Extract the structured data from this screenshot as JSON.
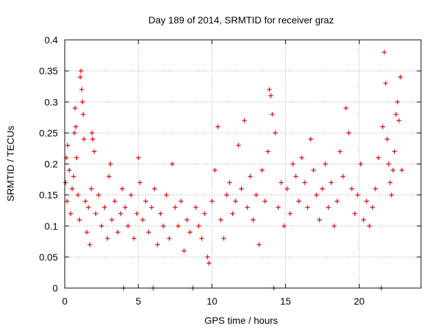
{
  "chart_data": {
    "type": "scatter",
    "title": "Day 189 of 2014, SRMTID for receiver graz",
    "xlabel": "GPS time / hours",
    "ylabel": "SRMTID / TECUs",
    "xlim": [
      0,
      24.2
    ],
    "ylim": [
      0,
      0.4
    ],
    "x_ticks": [
      "0",
      "5",
      "10",
      "15",
      "20"
    ],
    "x_tick_values": [
      0,
      5,
      10,
      15,
      20
    ],
    "y_ticks": [
      "0",
      "0.05",
      "0.1",
      "0.15",
      "0.2",
      "0.25",
      "0.3",
      "0.35",
      "0.4"
    ],
    "y_tick_values": [
      0,
      0.05,
      0.1,
      0.15,
      0.2,
      0.25,
      0.3,
      0.35,
      0.4
    ],
    "grid": true,
    "marker": "+",
    "color": "#e00000",
    "series": [
      {
        "name": "SRMTID",
        "points": [
          [
            0.05,
            0.17
          ],
          [
            0.1,
            0.21
          ],
          [
            0.15,
            0.14
          ],
          [
            0.2,
            0.23
          ],
          [
            0.3,
            0.19
          ],
          [
            0.4,
            0.12
          ],
          [
            0.5,
            0.16
          ],
          [
            0.6,
            0.18
          ],
          [
            0.65,
            0.25
          ],
          [
            0.7,
            0.29
          ],
          [
            0.75,
            0.26
          ],
          [
            0.8,
            0.21
          ],
          [
            0.9,
            0.15
          ],
          [
            1.0,
            0.11
          ],
          [
            1.05,
            0.34
          ],
          [
            1.1,
            0.35
          ],
          [
            1.15,
            0.32
          ],
          [
            1.2,
            0.3
          ],
          [
            1.25,
            0.28
          ],
          [
            1.3,
            0.24
          ],
          [
            1.4,
            0.14
          ],
          [
            1.5,
            0.09
          ],
          [
            1.6,
            0.13
          ],
          [
            1.7,
            0.07
          ],
          [
            1.8,
            0.16
          ],
          [
            1.85,
            0.25
          ],
          [
            1.9,
            0.24
          ],
          [
            2.0,
            0.22
          ],
          [
            2.1,
            0.12
          ],
          [
            2.3,
            0.15
          ],
          [
            2.5,
            0.1
          ],
          [
            2.7,
            0.13
          ],
          [
            2.9,
            0.08
          ],
          [
            3.0,
            0.18
          ],
          [
            3.1,
            0.2
          ],
          [
            3.2,
            0.11
          ],
          [
            3.4,
            0.14
          ],
          [
            3.6,
            0.09
          ],
          [
            3.8,
            0.12
          ],
          [
            3.9,
            0.16
          ],
          [
            4.0,
            0.0
          ],
          [
            4.1,
            0.13
          ],
          [
            4.3,
            0.1
          ],
          [
            4.5,
            0.15
          ],
          [
            4.7,
            0.08
          ],
          [
            4.9,
            0.12
          ],
          [
            5.0,
            0.21
          ],
          [
            5.1,
            0.17
          ],
          [
            5.3,
            0.11
          ],
          [
            5.5,
            0.14
          ],
          [
            5.7,
            0.09
          ],
          [
            5.9,
            0.13
          ],
          [
            6.0,
            0.0
          ],
          [
            6.1,
            0.16
          ],
          [
            6.3,
            0.07
          ],
          [
            6.5,
            0.12
          ],
          [
            6.7,
            0.1
          ],
          [
            6.9,
            0.15
          ],
          [
            7.1,
            0.08
          ],
          [
            7.3,
            0.2
          ],
          [
            7.5,
            0.13
          ],
          [
            7.7,
            0.1
          ],
          [
            7.9,
            0.14
          ],
          [
            8.1,
            0.06
          ],
          [
            8.3,
            0.11
          ],
          [
            8.5,
            0.09
          ],
          [
            8.7,
            0.0
          ],
          [
            8.9,
            0.13
          ],
          [
            9.1,
            0.1
          ],
          [
            9.3,
            0.08
          ],
          [
            9.5,
            0.12
          ],
          [
            9.7,
            0.05
          ],
          [
            9.8,
            0.04
          ],
          [
            10.0,
            0.14
          ],
          [
            10.2,
            0.19
          ],
          [
            10.4,
            0.26
          ],
          [
            10.6,
            0.11
          ],
          [
            10.8,
            0.08
          ],
          [
            11.0,
            0.15
          ],
          [
            11.2,
            0.17
          ],
          [
            11.4,
            0.12
          ],
          [
            11.6,
            0.14
          ],
          [
            11.8,
            0.23
          ],
          [
            12.0,
            0.16
          ],
          [
            12.2,
            0.27
          ],
          [
            12.4,
            0.13
          ],
          [
            12.6,
            0.18
          ],
          [
            12.8,
            0.11
          ],
          [
            13.0,
            0.15
          ],
          [
            13.2,
            0.07
          ],
          [
            13.4,
            0.19
          ],
          [
            13.6,
            0.14
          ],
          [
            13.8,
            0.22
          ],
          [
            13.9,
            0.32
          ],
          [
            14.0,
            0.31
          ],
          [
            14.1,
            0.28
          ],
          [
            14.2,
            0.0
          ],
          [
            14.3,
            0.25
          ],
          [
            14.5,
            0.13
          ],
          [
            14.7,
            0.17
          ],
          [
            14.9,
            0.1
          ],
          [
            15.1,
            0.16
          ],
          [
            15.3,
            0.12
          ],
          [
            15.5,
            0.2
          ],
          [
            15.7,
            0.18
          ],
          [
            15.9,
            0.14
          ],
          [
            16.1,
            0.21
          ],
          [
            16.3,
            0.17
          ],
          [
            16.5,
            0.13
          ],
          [
            16.7,
            0.24
          ],
          [
            16.9,
            0.19
          ],
          [
            17.1,
            0.15
          ],
          [
            17.3,
            0.11
          ],
          [
            17.5,
            0.16
          ],
          [
            17.7,
            0.2
          ],
          [
            17.9,
            0.13
          ],
          [
            18.1,
            0.17
          ],
          [
            18.3,
            0.1
          ],
          [
            18.5,
            0.14
          ],
          [
            18.7,
            0.22
          ],
          [
            18.9,
            0.18
          ],
          [
            19.1,
            0.29
          ],
          [
            19.3,
            0.25
          ],
          [
            19.5,
            0.16
          ],
          [
            19.7,
            0.12
          ],
          [
            19.9,
            0.15
          ],
          [
            20.1,
            0.2
          ],
          [
            20.3,
            0.11
          ],
          [
            20.5,
            0.14
          ],
          [
            20.7,
            0.1
          ],
          [
            20.9,
            0.13
          ],
          [
            21.1,
            0.16
          ],
          [
            21.3,
            0.21
          ],
          [
            21.5,
            0.0
          ],
          [
            21.6,
            0.26
          ],
          [
            21.7,
            0.38
          ],
          [
            21.8,
            0.33
          ],
          [
            21.9,
            0.24
          ],
          [
            22.0,
            0.2
          ],
          [
            22.1,
            0.17
          ],
          [
            22.2,
            0.15
          ],
          [
            22.3,
            0.19
          ],
          [
            22.4,
            0.22
          ],
          [
            22.5,
            0.28
          ],
          [
            22.6,
            0.3
          ],
          [
            22.7,
            0.27
          ],
          [
            22.8,
            0.34
          ],
          [
            22.9,
            0.19
          ]
        ]
      }
    ]
  }
}
